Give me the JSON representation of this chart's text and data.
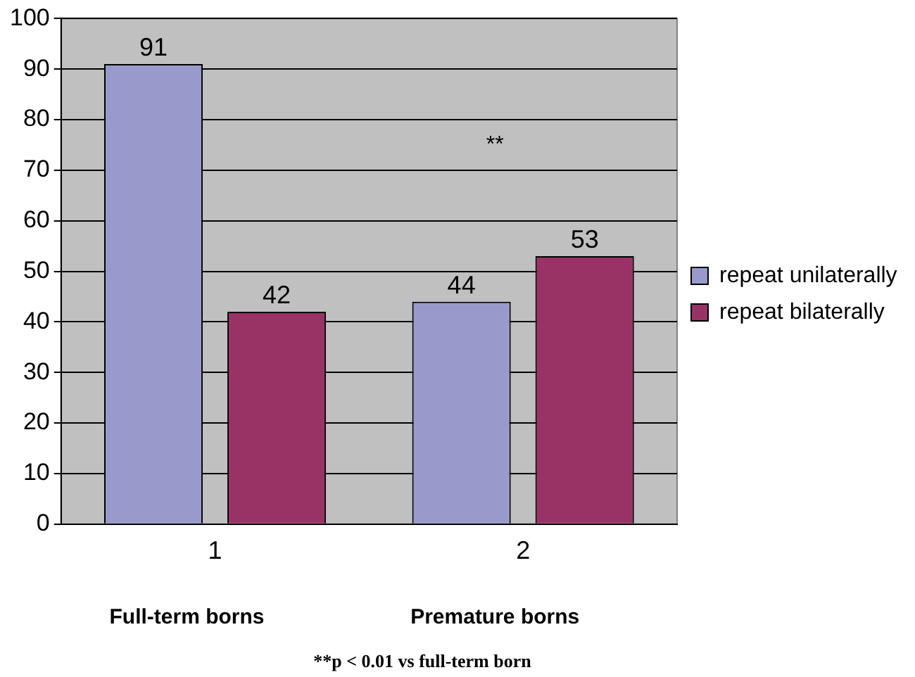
{
  "chart_data": {
    "type": "bar",
    "categories": [
      "1",
      "2"
    ],
    "series": [
      {
        "name": "repeat unilaterally",
        "color": "#9999cc",
        "values": [
          91,
          44
        ]
      },
      {
        "name": "repeat bilaterally",
        "color": "#993366",
        "values": [
          42,
          53
        ]
      }
    ],
    "ylim": [
      0,
      100
    ],
    "yticks": [
      0,
      10,
      20,
      30,
      40,
      50,
      60,
      70,
      80,
      90,
      100
    ],
    "grid": "y",
    "legend": "right",
    "data_labels": true,
    "annotations": [
      "Full-term borns",
      "Premature borns",
      "**",
      "**p < 0.01 vs full-term born"
    ]
  }
}
